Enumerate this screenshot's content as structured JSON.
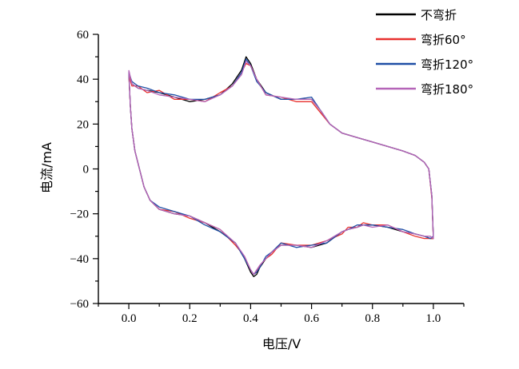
{
  "chart_data": {
    "type": "line",
    "title": "",
    "xlabel": "电压/V",
    "ylabel": "电流/mA",
    "xlim": [
      -0.1,
      1.1
    ],
    "ylim": [
      -60,
      60
    ],
    "xticks": [
      "0.0",
      "0.2",
      "0.4",
      "0.6",
      "0.8",
      "1.0"
    ],
    "yticks": [
      "60",
      "40",
      "20",
      "0",
      "−20",
      "−40",
      "−60"
    ],
    "grid": false,
    "legend_position": "top-right",
    "series": [
      {
        "name": "不弯折",
        "color": "#000000",
        "x": [
          0.0,
          0.01,
          0.03,
          0.06,
          0.1,
          0.15,
          0.2,
          0.25,
          0.3,
          0.34,
          0.37,
          0.385,
          0.4,
          0.42,
          0.45,
          0.5,
          0.55,
          0.6,
          0.63,
          0.66,
          0.7,
          0.75,
          0.8,
          0.85,
          0.9,
          0.94,
          0.97,
          0.985,
          0.995,
          1.0,
          0.99,
          0.97,
          0.94,
          0.9,
          0.85,
          0.8,
          0.77,
          0.75,
          0.72,
          0.7,
          0.65,
          0.6,
          0.55,
          0.5,
          0.47,
          0.45,
          0.43,
          0.42,
          0.41,
          0.4,
          0.38,
          0.35,
          0.3,
          0.25,
          0.2,
          0.15,
          0.1,
          0.07,
          0.05,
          0.035,
          0.02,
          0.01,
          0.005,
          0.0
        ],
        "y": [
          43,
          38,
          36,
          35,
          34,
          32,
          30,
          31,
          33,
          38,
          44,
          50,
          47,
          40,
          34,
          31,
          31,
          31,
          26,
          20,
          16,
          14,
          12,
          10,
          8,
          6,
          3,
          0,
          -12,
          -31,
          -31,
          -30,
          -29,
          -28,
          -26,
          -25,
          -25,
          -26,
          -27,
          -28,
          -33,
          -35,
          -34,
          -34,
          -37,
          -40,
          -44,
          -47,
          -48,
          -46,
          -40,
          -33,
          -28,
          -24,
          -21,
          -20,
          -18,
          -14,
          -8,
          0,
          8,
          18,
          28,
          43
        ]
      },
      {
        "name": "弯折60°",
        "color": "#e8302e",
        "x": [
          0.0,
          0.01,
          0.03,
          0.06,
          0.1,
          0.15,
          0.2,
          0.25,
          0.3,
          0.34,
          0.37,
          0.385,
          0.4,
          0.42,
          0.45,
          0.5,
          0.55,
          0.6,
          0.63,
          0.66,
          0.7,
          0.75,
          0.8,
          0.85,
          0.9,
          0.94,
          0.97,
          0.985,
          0.995,
          1.0,
          0.99,
          0.97,
          0.94,
          0.9,
          0.85,
          0.8,
          0.77,
          0.75,
          0.72,
          0.7,
          0.65,
          0.6,
          0.55,
          0.5,
          0.47,
          0.45,
          0.43,
          0.42,
          0.41,
          0.4,
          0.38,
          0.35,
          0.3,
          0.25,
          0.2,
          0.15,
          0.1,
          0.07,
          0.05,
          0.035,
          0.02,
          0.01,
          0.005,
          0.0
        ],
        "y": [
          42,
          37,
          37,
          34,
          35,
          31,
          31,
          30,
          34,
          37,
          43,
          47,
          46,
          40,
          33,
          32,
          30,
          30,
          25,
          20,
          16,
          14,
          12,
          10,
          8,
          6,
          3,
          0,
          -13,
          -31,
          -31,
          -31,
          -30,
          -28,
          -25,
          -25,
          -24,
          -26,
          -26,
          -29,
          -32,
          -34,
          -34,
          -33,
          -38,
          -40,
          -43,
          -46,
          -47,
          -45,
          -39,
          -34,
          -27,
          -24,
          -22,
          -19,
          -18,
          -14,
          -8,
          0,
          8,
          18,
          28,
          42
        ]
      },
      {
        "name": "弯折120°",
        "color": "#1f4ea6",
        "x": [
          0.0,
          0.01,
          0.03,
          0.06,
          0.1,
          0.15,
          0.2,
          0.25,
          0.3,
          0.34,
          0.37,
          0.385,
          0.4,
          0.42,
          0.45,
          0.5,
          0.55,
          0.6,
          0.63,
          0.66,
          0.7,
          0.75,
          0.8,
          0.85,
          0.9,
          0.94,
          0.97,
          0.985,
          0.995,
          1.0,
          0.99,
          0.97,
          0.94,
          0.9,
          0.85,
          0.8,
          0.77,
          0.75,
          0.72,
          0.7,
          0.65,
          0.6,
          0.55,
          0.5,
          0.47,
          0.45,
          0.43,
          0.42,
          0.41,
          0.4,
          0.38,
          0.35,
          0.3,
          0.25,
          0.2,
          0.15,
          0.1,
          0.07,
          0.05,
          0.035,
          0.02,
          0.01,
          0.005,
          0.0
        ],
        "y": [
          43,
          39,
          37,
          36,
          34,
          33,
          31,
          31,
          33,
          37,
          43,
          49,
          46,
          39,
          34,
          31,
          31,
          32,
          26,
          20,
          16,
          14,
          12,
          10,
          8,
          6,
          3,
          0,
          -12,
          -30,
          -31,
          -30,
          -29,
          -27,
          -26,
          -25,
          -25,
          -25,
          -27,
          -28,
          -33,
          -34,
          -35,
          -33,
          -37,
          -39,
          -44,
          -46,
          -47,
          -45,
          -40,
          -33,
          -28,
          -25,
          -21,
          -19,
          -17,
          -14,
          -8,
          0,
          8,
          18,
          28,
          43
        ]
      },
      {
        "name": "弯折180°",
        "color": "#b565b8",
        "x": [
          0.0,
          0.01,
          0.03,
          0.06,
          0.1,
          0.15,
          0.2,
          0.25,
          0.3,
          0.34,
          0.37,
          0.385,
          0.4,
          0.42,
          0.45,
          0.5,
          0.55,
          0.6,
          0.63,
          0.66,
          0.7,
          0.75,
          0.8,
          0.85,
          0.9,
          0.94,
          0.97,
          0.985,
          0.995,
          1.0,
          0.99,
          0.97,
          0.94,
          0.9,
          0.85,
          0.8,
          0.77,
          0.75,
          0.72,
          0.7,
          0.65,
          0.6,
          0.55,
          0.5,
          0.47,
          0.45,
          0.43,
          0.42,
          0.41,
          0.4,
          0.38,
          0.35,
          0.3,
          0.25,
          0.2,
          0.15,
          0.1,
          0.07,
          0.05,
          0.035,
          0.02,
          0.01,
          0.005,
          0.0
        ],
        "y": [
          44,
          38,
          36,
          35,
          33,
          32,
          31,
          30,
          33,
          37,
          42,
          48,
          46,
          40,
          33,
          32,
          31,
          31,
          26,
          20,
          16,
          14,
          12,
          10,
          8,
          6,
          3,
          0,
          -12,
          -31,
          -30,
          -30,
          -29,
          -28,
          -25,
          -26,
          -25,
          -26,
          -27,
          -28,
          -32,
          -35,
          -34,
          -34,
          -37,
          -40,
          -43,
          -45,
          -47,
          -45,
          -39,
          -33,
          -27,
          -24,
          -21,
          -20,
          -18,
          -14,
          -8,
          0,
          8,
          18,
          28,
          44
        ]
      }
    ]
  }
}
